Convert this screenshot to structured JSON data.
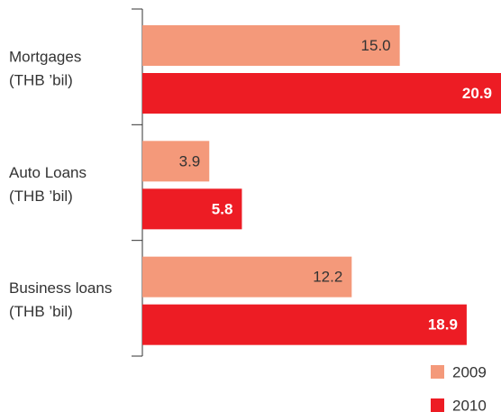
{
  "chart_data": {
    "type": "bar",
    "orientation": "horizontal",
    "categories": [
      [
        "Mortgages",
        "(THB ’bil)"
      ],
      [
        "Auto Loans",
        "(THB ’bil)"
      ],
      [
        "Business loans",
        "(THB ’bil)"
      ]
    ],
    "series": [
      {
        "name": "2009",
        "color": "#f4997a",
        "values": [
          15.0,
          3.9,
          12.2
        ],
        "value_labels": [
          "15.0",
          "3.9",
          "12.2"
        ]
      },
      {
        "name": "2010",
        "color": "#ed1c24",
        "values": [
          20.9,
          5.8,
          18.9
        ]
      }
    ],
    "legend": "bottom-right"
  }
}
